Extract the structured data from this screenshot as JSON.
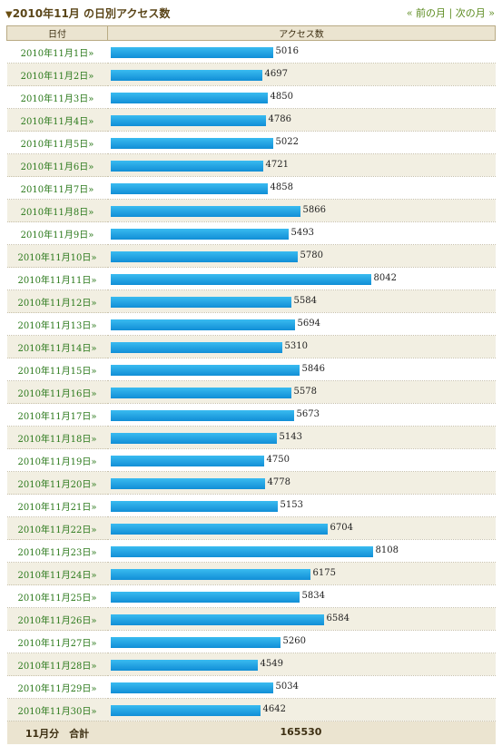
{
  "header": {
    "title": "2010年11月 の日別アクセス数",
    "prev_label": "« 前の月",
    "separator": "|",
    "next_label": "次の月 »"
  },
  "table": {
    "col_date": "日付",
    "col_count": "アクセス数"
  },
  "chart_data": {
    "type": "bar",
    "orientation": "horizontal",
    "categories": [
      "2010年11月1日»",
      "2010年11月2日»",
      "2010年11月3日»",
      "2010年11月4日»",
      "2010年11月5日»",
      "2010年11月6日»",
      "2010年11月7日»",
      "2010年11月8日»",
      "2010年11月9日»",
      "2010年11月10日»",
      "2010年11月11日»",
      "2010年11月12日»",
      "2010年11月13日»",
      "2010年11月14日»",
      "2010年11月15日»",
      "2010年11月16日»",
      "2010年11月17日»",
      "2010年11月18日»",
      "2010年11月19日»",
      "2010年11月20日»",
      "2010年11月21日»",
      "2010年11月22日»",
      "2010年11月23日»",
      "2010年11月24日»",
      "2010年11月25日»",
      "2010年11月26日»",
      "2010年11月27日»",
      "2010年11月28日»",
      "2010年11月29日»",
      "2010年11月30日»"
    ],
    "values": [
      5016,
      4697,
      4850,
      4786,
      5022,
      4721,
      4858,
      5866,
      5493,
      5780,
      8042,
      5584,
      5694,
      5310,
      5846,
      5578,
      5673,
      5143,
      4750,
      4778,
      5153,
      6704,
      8108,
      6175,
      5834,
      6584,
      5260,
      4549,
      5034,
      4642
    ],
    "bar_color": "#1aa3e8"
  },
  "footer": {
    "label": "11月分　合計",
    "total": "165530"
  }
}
